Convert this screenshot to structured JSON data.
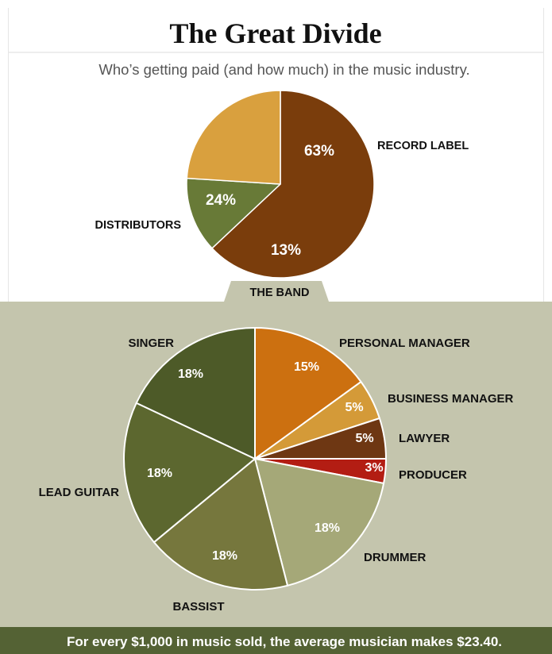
{
  "header": {
    "title": "The Great Divide",
    "subtitle": "Who’s getting paid (and how much) in the music industry."
  },
  "footer": {
    "text": "For every $1,000 in music sold, the average musician makes $23.40."
  },
  "colors": {
    "background_top": "#ffffff",
    "background_bottom": "#c4c5ad",
    "footer_bar": "#546234",
    "footer_text": "#ffffff",
    "divider": "#dcdcdc",
    "label_text": "#111111",
    "pct_text": "#ffffff"
  },
  "chart_data": [
    {
      "type": "pie",
      "title": "",
      "slices": [
        {
          "label": "RECORD LABEL",
          "value": 63,
          "value_label": "63%",
          "color": "#7a3d0c"
        },
        {
          "label": "THE BAND",
          "value": 13,
          "value_label": "13%",
          "color": "#687a37"
        },
        {
          "label": "DISTRIBUTORS",
          "value": 24,
          "value_label": "24%",
          "color": "#d9a03e"
        }
      ]
    },
    {
      "type": "pie",
      "title": "",
      "slices": [
        {
          "label": "PERSONAL MANAGER",
          "value": 15,
          "value_label": "15%",
          "color": "#cc7010"
        },
        {
          "label": "BUSINESS MANAGER",
          "value": 5,
          "value_label": "5%",
          "color": "#d49a38"
        },
        {
          "label": "LAWYER",
          "value": 5,
          "value_label": "5%",
          "color": "#6e3713"
        },
        {
          "label": "PRODUCER",
          "value": 3,
          "value_label": "3%",
          "color": "#b31d13"
        },
        {
          "label": "DRUMMER",
          "value": 18,
          "value_label": "18%",
          "color": "#a5a878"
        },
        {
          "label": "BASSIST",
          "value": 18,
          "value_label": "18%",
          "color": "#76773d"
        },
        {
          "label": "LEAD GUITAR",
          "value": 18,
          "value_label": "18%",
          "color": "#5c672f"
        },
        {
          "label": "SINGER",
          "value": 18,
          "value_label": "18%",
          "color": "#4d5a28"
        }
      ]
    }
  ]
}
